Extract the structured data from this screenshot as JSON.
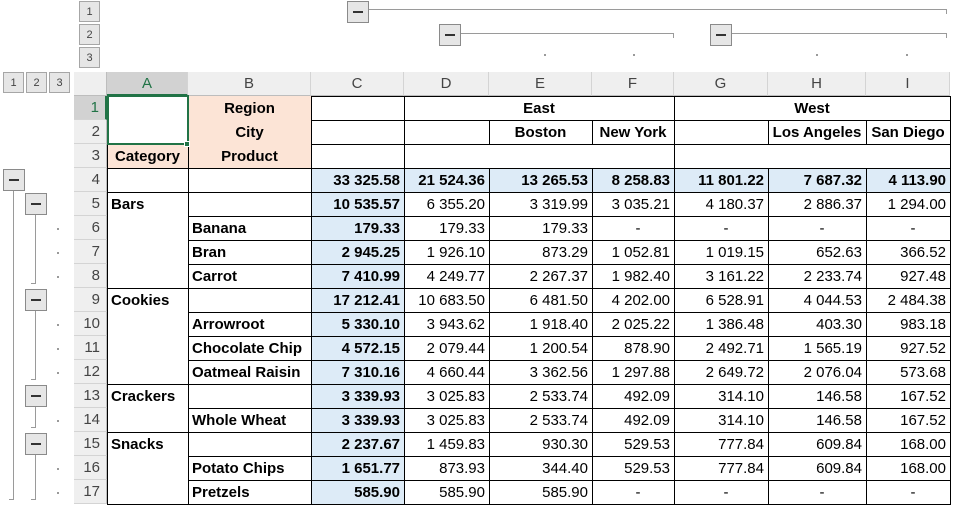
{
  "colors": {
    "header_fill": "#fce4d6",
    "total_fill": "#ddebf7",
    "selection": "#217346"
  },
  "outline": {
    "col_levels": [
      "1",
      "2",
      "3"
    ],
    "row_levels": [
      "1",
      "2",
      "3"
    ],
    "collapse_icon": "minus-icon"
  },
  "columns": [
    "A",
    "B",
    "C",
    "D",
    "E",
    "F",
    "G",
    "H",
    "I"
  ],
  "rows": [
    "1",
    "2",
    "3",
    "4",
    "5",
    "6",
    "7",
    "8",
    "9",
    "10",
    "11",
    "12",
    "13",
    "14",
    "15",
    "16",
    "17"
  ],
  "headers": {
    "region_label": "Region",
    "city_label": "City",
    "category_label": "Category",
    "product_label": "Product",
    "east": "East",
    "west": "West",
    "boston": "Boston",
    "new_york": "New York",
    "los_angeles": "Los Angeles",
    "san_diego": "San Diego"
  },
  "grand_total": [
    "33 325.58",
    "21 524.36",
    "13 265.53",
    "8 258.83",
    "11 801.22",
    "7 687.32",
    "4 113.90"
  ],
  "body": [
    {
      "category": "Bars",
      "product": "",
      "values": [
        "10 535.57",
        "6 355.20",
        "3 319.99",
        "3 035.21",
        "4 180.37",
        "2 886.37",
        "1 294.00"
      ]
    },
    {
      "category": "",
      "product": "Banana",
      "values": [
        "179.33",
        "179.33",
        "179.33",
        "-",
        "-",
        "-",
        "-"
      ]
    },
    {
      "category": "",
      "product": "Bran",
      "values": [
        "2 945.25",
        "1 926.10",
        "873.29",
        "1 052.81",
        "1 019.15",
        "652.63",
        "366.52"
      ]
    },
    {
      "category": "",
      "product": "Carrot",
      "values": [
        "7 410.99",
        "4 249.77",
        "2 267.37",
        "1 982.40",
        "3 161.22",
        "2 233.74",
        "927.48"
      ]
    },
    {
      "category": "Cookies",
      "product": "",
      "values": [
        "17 212.41",
        "10 683.50",
        "6 481.50",
        "4 202.00",
        "6 528.91",
        "4 044.53",
        "2 484.38"
      ]
    },
    {
      "category": "",
      "product": "Arrowroot",
      "values": [
        "5 330.10",
        "3 943.62",
        "1 918.40",
        "2 025.22",
        "1 386.48",
        "403.30",
        "983.18"
      ]
    },
    {
      "category": "",
      "product": "Chocolate Chip",
      "values": [
        "4 572.15",
        "2 079.44",
        "1 200.54",
        "878.90",
        "2 492.71",
        "1 565.19",
        "927.52"
      ]
    },
    {
      "category": "",
      "product": "Oatmeal Raisin",
      "values": [
        "7 310.16",
        "4 660.44",
        "3 362.56",
        "1 297.88",
        "2 649.72",
        "2 076.04",
        "573.68"
      ]
    },
    {
      "category": "Crackers",
      "product": "",
      "values": [
        "3 339.93",
        "3 025.83",
        "2 533.74",
        "492.09",
        "314.10",
        "146.58",
        "167.52"
      ]
    },
    {
      "category": "",
      "product": "Whole Wheat",
      "values": [
        "3 339.93",
        "3 025.83",
        "2 533.74",
        "492.09",
        "314.10",
        "146.58",
        "167.52"
      ]
    },
    {
      "category": "Snacks",
      "product": "",
      "values": [
        "2 237.67",
        "1 459.83",
        "930.30",
        "529.53",
        "777.84",
        "609.84",
        "168.00"
      ]
    },
    {
      "category": "",
      "product": "Potato Chips",
      "values": [
        "1 651.77",
        "873.93",
        "344.40",
        "529.53",
        "777.84",
        "609.84",
        "168.00"
      ]
    },
    {
      "category": "",
      "product": "Pretzels",
      "values": [
        "585.90",
        "585.90",
        "585.90",
        "-",
        "-",
        "-",
        "-"
      ]
    }
  ]
}
